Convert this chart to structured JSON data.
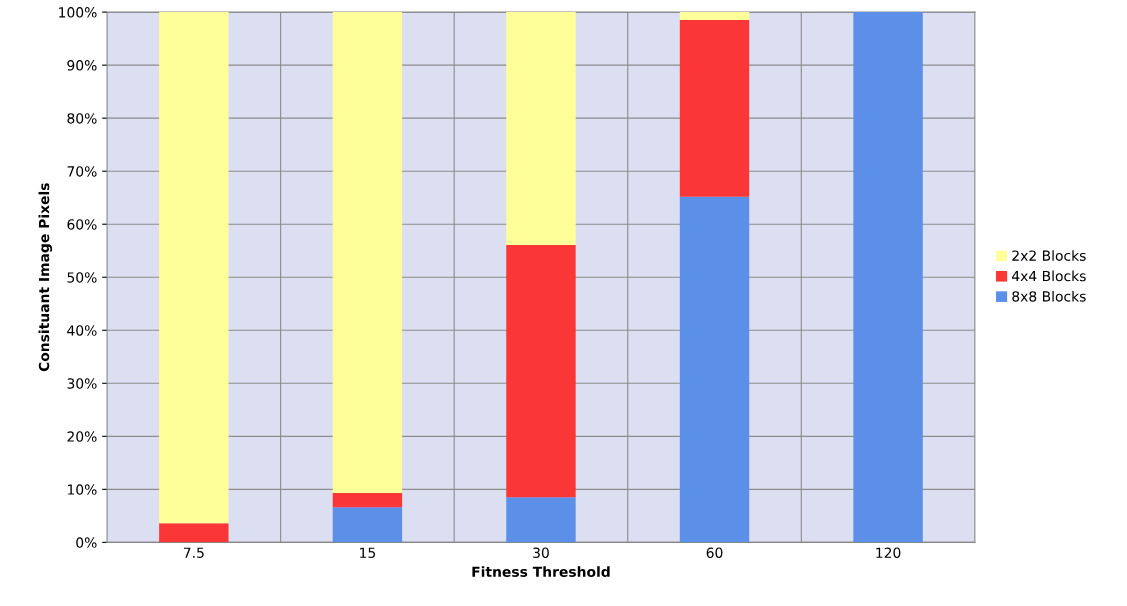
{
  "chart_data": {
    "type": "bar",
    "stacked": true,
    "xlabel": "Fitness Threshold",
    "ylabel": "Consituant Image Pixels",
    "categories": [
      "7.5",
      "15",
      "30",
      "60",
      "120"
    ],
    "series": [
      {
        "name": "8x8 Blocks",
        "color": "#5b8fe8",
        "values": [
          0,
          6.6,
          8.5,
          65.2,
          100
        ]
      },
      {
        "name": "4x4 Blocks",
        "color": "#fb3636",
        "values": [
          3.6,
          2.7,
          47.6,
          33.3,
          0
        ]
      },
      {
        "name": "2x2 Blocks",
        "color": "#ffff99",
        "values": [
          96.4,
          90.7,
          43.9,
          1.5,
          0
        ]
      }
    ],
    "ylim": [
      0,
      100
    ],
    "yticks": [
      {
        "value": 0,
        "label": "0%"
      },
      {
        "value": 10,
        "label": "10%"
      },
      {
        "value": 20,
        "label": "20%"
      },
      {
        "value": 30,
        "label": "30%"
      },
      {
        "value": 40,
        "label": "40%"
      },
      {
        "value": 50,
        "label": "50%"
      },
      {
        "value": 60,
        "label": "60%"
      },
      {
        "value": 70,
        "label": "70%"
      },
      {
        "value": 80,
        "label": "80%"
      },
      {
        "value": 90,
        "label": "90%"
      },
      {
        "value": 100,
        "label": "100%"
      }
    ],
    "grid": true,
    "legend": "right"
  }
}
